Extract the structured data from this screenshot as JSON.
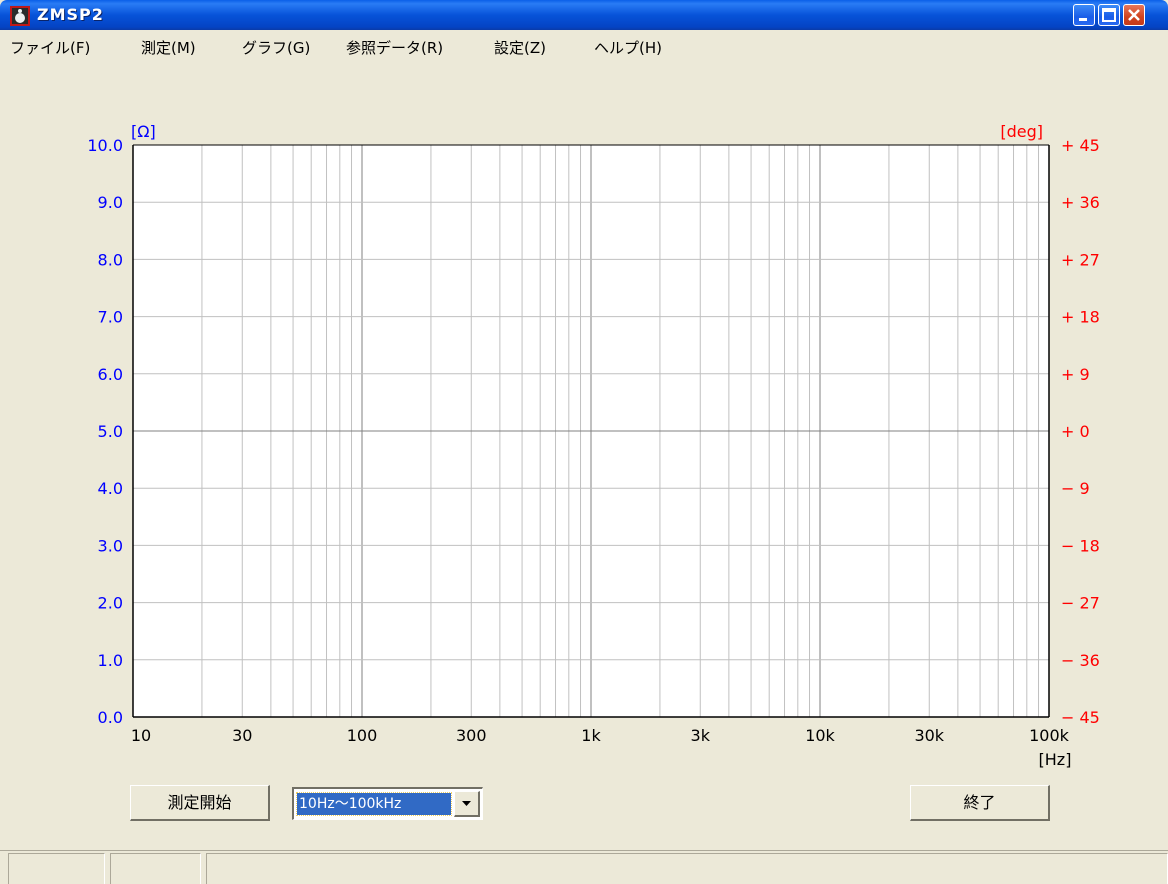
{
  "window": {
    "title": "ZMSP2",
    "icon": "app-icon",
    "controls": [
      "minimize-icon",
      "maximize-icon",
      "close-icon"
    ]
  },
  "menu": {
    "items": [
      "ファイル(F)",
      "測定(M)",
      "グラフ(G)",
      "参照データ(R)",
      "設定(Z)",
      "ヘルプ(H)"
    ]
  },
  "chart_data": {
    "type": "line",
    "title": "",
    "xlabel": "[Hz]",
    "ylabel": "[Ω]",
    "y2label": "[deg]",
    "x_scale": "log",
    "xlim": [
      10,
      100000
    ],
    "ylim": [
      0,
      10
    ],
    "y2lim": [
      -45,
      45
    ],
    "x_ticks": [
      "10",
      "30",
      "100",
      "300",
      "1k",
      "3k",
      "10k",
      "30k",
      "100k"
    ],
    "y_ticks": [
      "0.0",
      "1.0",
      "2.0",
      "3.0",
      "4.0",
      "5.0",
      "6.0",
      "7.0",
      "8.0",
      "9.0",
      "10.0"
    ],
    "y2_ticks": [
      "− 45",
      "− 36",
      "− 27",
      "− 18",
      "− 9",
      "+ 0",
      "+ 9",
      "+ 18",
      "+ 27",
      "+ 36",
      "+ 45"
    ],
    "grid": true,
    "series": [],
    "colors": {
      "left_axis": "#0000ff",
      "right_axis": "#ff0000",
      "grid": "#c0c0c0",
      "major_grid": "#808080"
    }
  },
  "controls": {
    "start_label": "測定開始",
    "range_value": "10Hz〜100kHz",
    "exit_label": "終了"
  },
  "statusbar": {
    "panes": [
      "",
      "",
      ""
    ]
  }
}
